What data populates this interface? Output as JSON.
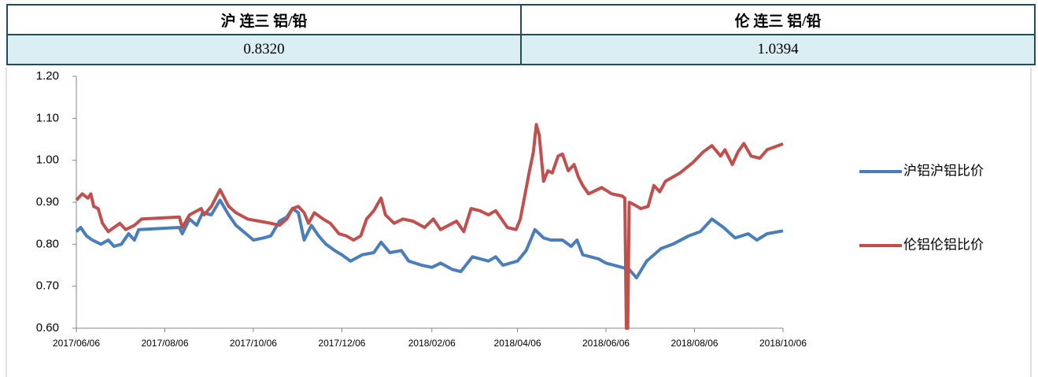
{
  "table": {
    "rows": [
      [
        "沪 连三 铝/铅",
        "伦 连三 铝/铅"
      ],
      [
        "0.8320",
        "1.0394"
      ]
    ]
  },
  "chart_data": {
    "type": "line",
    "xlim": [
      "2017/06/06",
      "2018/10/06"
    ],
    "xticks": [
      "2017/06/06",
      "2017/08/06",
      "2017/10/06",
      "2017/12/06",
      "2018/02/06",
      "2018/04/06",
      "2018/06/06",
      "2018/08/06",
      "2018/10/06"
    ],
    "ylim": [
      0.6,
      1.2
    ],
    "yticks": [
      {
        "value": 0.6,
        "label": "0.60"
      },
      {
        "value": 0.7,
        "label": "0.70"
      },
      {
        "value": 0.8,
        "label": "0.80"
      },
      {
        "value": 0.9,
        "label": "0.90"
      },
      {
        "value": 1.0,
        "label": "1.00"
      },
      {
        "value": 1.1,
        "label": "1.10"
      },
      {
        "value": 1.2,
        "label": "1.20"
      }
    ],
    "grid": false,
    "legend": "right",
    "series": [
      {
        "name": "沪铝沪铝比价",
        "color": "#4a7ebb",
        "x": [
          "2017/06/06",
          "2017/06/09",
          "2017/06/13",
          "2017/06/17",
          "2017/06/23",
          "2017/06/28",
          "2017/07/02",
          "2017/07/07",
          "2017/07/12",
          "2017/07/16",
          "2017/07/19",
          "2017/08/16",
          "2017/08/18",
          "2017/08/23",
          "2017/08/28",
          "2017/09/01",
          "2017/09/07",
          "2017/09/13",
          "2017/09/19",
          "2017/09/24",
          "2017/10/01",
          "2017/10/06",
          "2017/10/13",
          "2017/10/18",
          "2017/10/24",
          "2017/10/29",
          "2017/11/02",
          "2017/11/06",
          "2017/11/10",
          "2017/11/15",
          "2017/11/20",
          "2017/11/25",
          "2017/12/01",
          "2017/12/06",
          "2017/12/12",
          "2017/12/20",
          "2017/12/28",
          "2018/01/02",
          "2018/01/08",
          "2018/01/16",
          "2018/01/21",
          "2018/01/30",
          "2018/02/06",
          "2018/02/12",
          "2018/02/20",
          "2018/02/26",
          "2018/03/06",
          "2018/03/17",
          "2018/03/22",
          "2018/03/27",
          "2018/04/06",
          "2018/04/12",
          "2018/04/15",
          "2018/04/18",
          "2018/04/24",
          "2018/04/29",
          "2018/05/07",
          "2018/05/13",
          "2018/05/17",
          "2018/05/21",
          "2018/06/01",
          "2018/06/06",
          "2018/06/17",
          "2018/06/22",
          "2018/06/27",
          "2018/07/04",
          "2018/07/14",
          "2018/07/22",
          "2018/08/02",
          "2018/08/10",
          "2018/08/18",
          "2018/08/26",
          "2018/09/03",
          "2018/09/12",
          "2018/09/18",
          "2018/09/25",
          "2018/10/06"
        ],
        "values": [
          0.83,
          0.84,
          0.82,
          0.81,
          0.8,
          0.81,
          0.795,
          0.8,
          0.825,
          0.81,
          0.835,
          0.84,
          0.825,
          0.86,
          0.845,
          0.875,
          0.87,
          0.905,
          0.87,
          0.845,
          0.825,
          0.81,
          0.815,
          0.82,
          0.855,
          0.865,
          0.885,
          0.875,
          0.81,
          0.845,
          0.82,
          0.8,
          0.785,
          0.775,
          0.76,
          0.775,
          0.78,
          0.805,
          0.78,
          0.785,
          0.76,
          0.75,
          0.745,
          0.755,
          0.74,
          0.735,
          0.77,
          0.76,
          0.77,
          0.75,
          0.76,
          0.785,
          0.81,
          0.835,
          0.815,
          0.81,
          0.81,
          0.795,
          0.81,
          0.775,
          0.765,
          0.755,
          0.745,
          0.74,
          0.72,
          0.76,
          0.79,
          0.8,
          0.82,
          0.83,
          0.86,
          0.84,
          0.815,
          0.825,
          0.81,
          0.825,
          0.832
        ]
      },
      {
        "name": "伦铝伦铝比价",
        "color": "#c0504d",
        "x": [
          "2017/06/06",
          "2017/06/10",
          "2017/06/14",
          "2017/06/16",
          "2017/06/18",
          "2017/06/21",
          "2017/06/24",
          "2017/06/28",
          "2017/07/02",
          "2017/07/06",
          "2017/07/10",
          "2017/07/16",
          "2017/07/21",
          "2017/08/16",
          "2017/08/18",
          "2017/08/23",
          "2017/08/31",
          "2017/09/02",
          "2017/09/07",
          "2017/09/13",
          "2017/09/19",
          "2017/09/24",
          "2017/10/02",
          "2017/10/10",
          "2017/10/18",
          "2017/10/24",
          "2017/10/29",
          "2017/11/02",
          "2017/11/06",
          "2017/11/10",
          "2017/11/13",
          "2017/11/17",
          "2017/11/23",
          "2017/11/28",
          "2017/12/04",
          "2017/12/09",
          "2017/12/14",
          "2017/12/19",
          "2017/12/23",
          "2017/12/28",
          "2018/01/02",
          "2018/01/05",
          "2018/01/11",
          "2018/01/17",
          "2018/01/24",
          "2018/02/01",
          "2018/02/07",
          "2018/02/12",
          "2018/02/23",
          "2018/02/28",
          "2018/03/05",
          "2018/03/11",
          "2018/03/17",
          "2018/03/22",
          "2018/03/30",
          "2018/04/05",
          "2018/04/08",
          "2018/04/14",
          "2018/04/17",
          "2018/04/19",
          "2018/04/21",
          "2018/04/24",
          "2018/04/27",
          "2018/04/30",
          "2018/05/04",
          "2018/05/07",
          "2018/05/11",
          "2018/05/15",
          "2018/05/18",
          "2018/05/21",
          "2018/05/25",
          "2018/06/03",
          "2018/06/10",
          "2018/06/17",
          "2018/06/19",
          "2018/06/20",
          "2018/06/21",
          "2018/06/22",
          "2018/06/25",
          "2018/06/30",
          "2018/07/05",
          "2018/07/09",
          "2018/07/13",
          "2018/07/17",
          "2018/07/22",
          "2018/07/27",
          "2018/08/05",
          "2018/08/12",
          "2018/08/18",
          "2018/08/24",
          "2018/08/27",
          "2018/09/01",
          "2018/09/05",
          "2018/09/09",
          "2018/09/14",
          "2018/09/20",
          "2018/09/25",
          "2018/10/06"
        ],
        "values": [
          0.905,
          0.92,
          0.91,
          0.92,
          0.89,
          0.885,
          0.85,
          0.83,
          0.84,
          0.85,
          0.835,
          0.845,
          0.86,
          0.865,
          0.84,
          0.87,
          0.885,
          0.87,
          0.89,
          0.93,
          0.89,
          0.875,
          0.86,
          0.855,
          0.85,
          0.845,
          0.86,
          0.885,
          0.89,
          0.875,
          0.85,
          0.875,
          0.86,
          0.85,
          0.825,
          0.82,
          0.81,
          0.82,
          0.86,
          0.88,
          0.91,
          0.87,
          0.85,
          0.86,
          0.855,
          0.84,
          0.86,
          0.835,
          0.855,
          0.83,
          0.885,
          0.88,
          0.87,
          0.88,
          0.84,
          0.835,
          0.86,
          0.97,
          1.02,
          1.085,
          1.06,
          0.95,
          0.975,
          0.97,
          1.01,
          1.015,
          0.975,
          0.99,
          0.96,
          0.94,
          0.92,
          0.935,
          0.92,
          0.915,
          0.91,
          0.6,
          0.6,
          0.9,
          0.895,
          0.885,
          0.89,
          0.94,
          0.925,
          0.95,
          0.96,
          0.97,
          0.995,
          1.02,
          1.035,
          1.01,
          1.025,
          0.99,
          1.02,
          1.04,
          1.01,
          1.005,
          1.025,
          1.0394
        ]
      }
    ]
  }
}
